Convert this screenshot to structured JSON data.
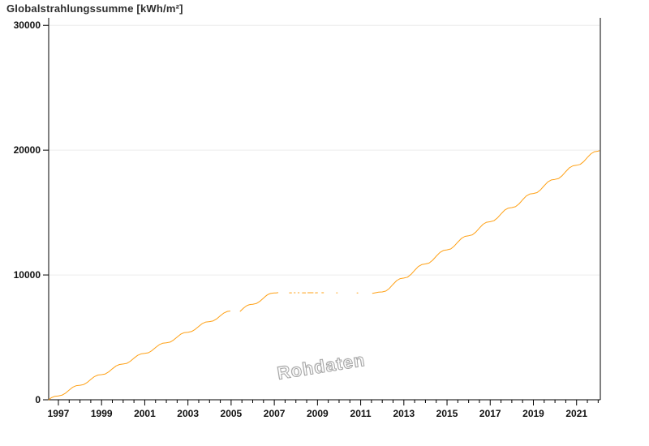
{
  "chart_data": {
    "type": "line",
    "title": "Globalstrahlungssumme [kWh/m²]",
    "watermark": "Rohdaten",
    "xlabel": "",
    "ylabel": "kWh/m²",
    "x_domain": [
      1996.55,
      2022.1
    ],
    "y_domain": [
      0,
      30600
    ],
    "grid": "horizontal-only",
    "legend": "none",
    "line_color": "#FFA014",
    "grid_color": "#ECECEC",
    "axis_color": "#000000",
    "y_ticks": [
      {
        "value": 0,
        "label": "0"
      },
      {
        "value": 10000,
        "label": "10000"
      },
      {
        "value": 20000,
        "label": "20000"
      },
      {
        "value": 30000,
        "label": "30000"
      }
    ],
    "x_labeled_years": [
      1997,
      1999,
      2001,
      2003,
      2005,
      2007,
      2009,
      2011,
      2013,
      2015,
      2017,
      2019,
      2021
    ],
    "x_minor_tick_step": 0.5,
    "x_minor_tick_range": [
      1997.0,
      2022.0
    ],
    "segments": [
      [
        [
          1996.55,
          0
        ],
        [
          1996.67,
          160
        ],
        [
          1996.83,
          280
        ],
        [
          1997.0,
          315
        ],
        [
          1997.17,
          369
        ],
        [
          1997.33,
          534
        ],
        [
          1997.5,
          781
        ],
        [
          1997.67,
          1011
        ],
        [
          1997.83,
          1129
        ],
        [
          1998.0,
          1165
        ],
        [
          1998.17,
          1219
        ],
        [
          1998.33,
          1384
        ],
        [
          1998.5,
          1631
        ],
        [
          1998.67,
          1861
        ],
        [
          1998.83,
          1979
        ],
        [
          1999.0,
          2015
        ],
        [
          1999.17,
          2069
        ],
        [
          1999.33,
          2234
        ],
        [
          1999.5,
          2481
        ],
        [
          1999.67,
          2711
        ],
        [
          1999.83,
          2829
        ],
        [
          2000.0,
          2865
        ],
        [
          2000.17,
          2919
        ],
        [
          2000.33,
          3084
        ],
        [
          2000.5,
          3331
        ],
        [
          2000.67,
          3561
        ],
        [
          2000.83,
          3679
        ],
        [
          2001.0,
          3715
        ],
        [
          2001.17,
          3769
        ],
        [
          2001.33,
          3934
        ],
        [
          2001.5,
          4181
        ],
        [
          2001.67,
          4411
        ],
        [
          2001.83,
          4529
        ],
        [
          2002.0,
          4565
        ],
        [
          2002.17,
          4619
        ],
        [
          2002.33,
          4784
        ],
        [
          2002.5,
          5031
        ],
        [
          2002.67,
          5261
        ],
        [
          2002.83,
          5379
        ],
        [
          2003.0,
          5415
        ],
        [
          2003.17,
          5469
        ],
        [
          2003.33,
          5634
        ],
        [
          2003.5,
          5881
        ],
        [
          2003.67,
          6111
        ],
        [
          2003.83,
          6229
        ],
        [
          2004.0,
          6265
        ],
        [
          2004.17,
          6319
        ],
        [
          2004.33,
          6484
        ],
        [
          2004.5,
          6731
        ],
        [
          2004.67,
          6961
        ],
        [
          2004.83,
          7079
        ],
        [
          2004.95,
          7105
        ]
      ],
      [
        [
          2005.42,
          7085
        ],
        [
          2005.5,
          7220
        ],
        [
          2005.58,
          7350
        ],
        [
          2005.67,
          7470
        ],
        [
          2005.75,
          7560
        ],
        [
          2005.83,
          7610
        ],
        [
          2005.92,
          7640
        ],
        [
          2006.0,
          7655
        ],
        [
          2006.17,
          7710
        ],
        [
          2006.33,
          7885
        ],
        [
          2006.5,
          8150
        ],
        [
          2006.58,
          8270
        ],
        [
          2006.67,
          8395
        ],
        [
          2006.75,
          8470
        ],
        [
          2006.83,
          8520
        ],
        [
          2006.92,
          8545
        ],
        [
          2007.0,
          8555
        ],
        [
          2007.08,
          8565
        ],
        [
          2007.17,
          8580
        ]
      ],
      [
        [
          2007.7,
          8570
        ],
        [
          2007.8,
          8570
        ]
      ],
      [
        [
          2007.92,
          8573
        ],
        [
          2007.97,
          8573
        ]
      ],
      [
        [
          2008.1,
          8575
        ],
        [
          2008.15,
          8575
        ]
      ],
      [
        [
          2008.3,
          8570
        ],
        [
          2008.45,
          8572
        ]
      ],
      [
        [
          2008.55,
          8574
        ],
        [
          2008.8,
          8574
        ]
      ],
      [
        [
          2008.9,
          8572
        ],
        [
          2009.0,
          8573
        ]
      ],
      [
        [
          2009.2,
          8575
        ],
        [
          2009.28,
          8575
        ]
      ],
      [
        [
          2009.88,
          8570
        ],
        [
          2009.92,
          8570
        ]
      ],
      [
        [
          2010.83,
          8565
        ],
        [
          2010.87,
          8565
        ]
      ],
      [
        [
          2011.55,
          8530
        ],
        [
          2011.67,
          8570
        ],
        [
          2011.83,
          8620
        ],
        [
          2012.0,
          8640
        ],
        [
          2012.17,
          8711
        ],
        [
          2012.33,
          8927
        ],
        [
          2012.5,
          9249
        ],
        [
          2012.67,
          9549
        ],
        [
          2012.83,
          9704
        ],
        [
          2013.0,
          9750
        ],
        [
          2013.17,
          9822
        ],
        [
          2013.33,
          10042
        ],
        [
          2013.5,
          10370
        ],
        [
          2013.67,
          10676
        ],
        [
          2013.83,
          10833
        ],
        [
          2014.0,
          10880
        ],
        [
          2014.17,
          10952
        ],
        [
          2014.33,
          11172
        ],
        [
          2014.5,
          11500
        ],
        [
          2014.67,
          11806
        ],
        [
          2014.83,
          11963
        ],
        [
          2015.0,
          12010
        ],
        [
          2015.17,
          12082
        ],
        [
          2015.33,
          12302
        ],
        [
          2015.5,
          12630
        ],
        [
          2015.67,
          12936
        ],
        [
          2015.83,
          13093
        ],
        [
          2016.0,
          13140
        ],
        [
          2016.17,
          13212
        ],
        [
          2016.33,
          13432
        ],
        [
          2016.5,
          13760
        ],
        [
          2016.67,
          14066
        ],
        [
          2016.83,
          14223
        ],
        [
          2017.0,
          14270
        ],
        [
          2017.17,
          14342
        ],
        [
          2017.33,
          14562
        ],
        [
          2017.5,
          14890
        ],
        [
          2017.67,
          15196
        ],
        [
          2017.83,
          15353
        ],
        [
          2018.0,
          15400
        ],
        [
          2018.17,
          15472
        ],
        [
          2018.33,
          15692
        ],
        [
          2018.5,
          16020
        ],
        [
          2018.67,
          16326
        ],
        [
          2018.83,
          16483
        ],
        [
          2019.0,
          16530
        ],
        [
          2019.17,
          16602
        ],
        [
          2019.33,
          16822
        ],
        [
          2019.5,
          17150
        ],
        [
          2019.67,
          17456
        ],
        [
          2019.83,
          17613
        ],
        [
          2020.0,
          17660
        ],
        [
          2020.17,
          17732
        ],
        [
          2020.33,
          17952
        ],
        [
          2020.5,
          18280
        ],
        [
          2020.67,
          18586
        ],
        [
          2020.83,
          18743
        ],
        [
          2021.0,
          18790
        ],
        [
          2021.17,
          18862
        ],
        [
          2021.33,
          19082
        ],
        [
          2021.5,
          19410
        ],
        [
          2021.67,
          19716
        ],
        [
          2021.83,
          19873
        ],
        [
          2022.0,
          19920
        ],
        [
          2022.05,
          19950
        ]
      ]
    ]
  }
}
